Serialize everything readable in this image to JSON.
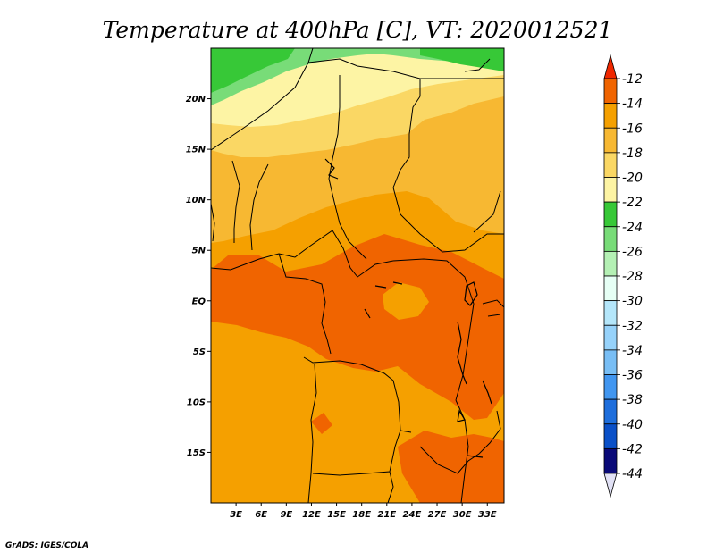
{
  "chart_data": {
    "type": "heatmap",
    "title": "Temperature at 400hPa [C], VT: 2020012521",
    "variable": "Temperature",
    "level": "400hPa",
    "units": "C",
    "valid_time": "2020012521",
    "x_ticks": [
      "3E",
      "6E",
      "9E",
      "12E",
      "15E",
      "18E",
      "21E",
      "24E",
      "27E",
      "30E",
      "33E"
    ],
    "x_tick_values": [
      3,
      6,
      9,
      12,
      15,
      18,
      21,
      24,
      27,
      30,
      33
    ],
    "y_ticks": [
      "20N",
      "15N",
      "10N",
      "5N",
      "EQ",
      "5S",
      "10S",
      "15S"
    ],
    "y_tick_values": [
      20,
      15,
      10,
      5,
      0,
      -5,
      -10,
      -15
    ],
    "xlim": [
      0,
      35
    ],
    "ylim": [
      -20,
      25
    ],
    "legend_levels": [
      -12,
      -14,
      -16,
      -18,
      -20,
      -22,
      -24,
      -26,
      -28,
      -30,
      -32,
      -34,
      -36,
      -38,
      -40,
      -42,
      -44
    ],
    "legend_labels": [
      "-12",
      "-14",
      "-16",
      "-18",
      "-20",
      "-22",
      "-24",
      "-26",
      "-28",
      "-30",
      "-32",
      "-34",
      "-36",
      "-38",
      "-40",
      "-42",
      "-44"
    ],
    "legend_colors": [
      "#f02800",
      "#f06400",
      "#f5a000",
      "#f7b832",
      "#fad764",
      "#fdf4a4",
      "#37c837",
      "#78dc78",
      "#b4f0b4",
      "#e6fff5",
      "#b4e6fa",
      "#96d2fa",
      "#78bef5",
      "#4196f0",
      "#1e6edc",
      "#0a50c8",
      "#0a0a78",
      "#e1e1f5"
    ],
    "legend_position": "right"
  },
  "credit": "GrADS: IGES/COLA"
}
